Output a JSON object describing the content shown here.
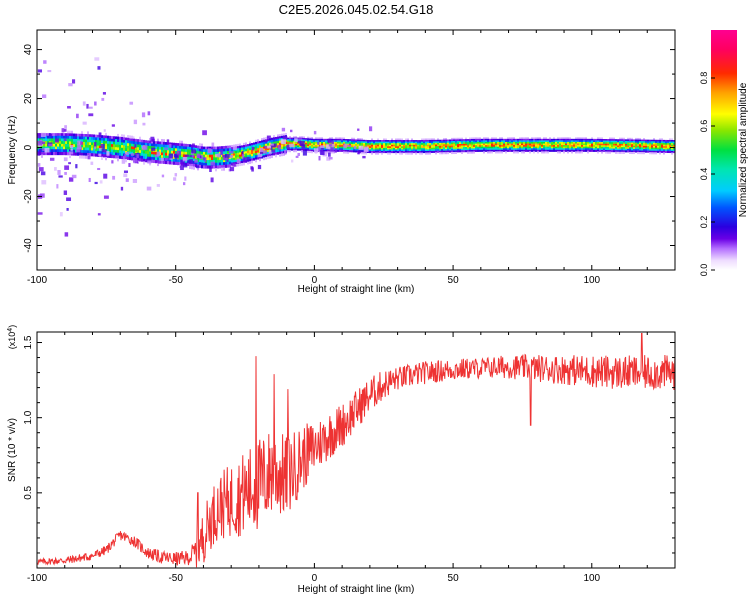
{
  "title": "C2E5.2026.045.02.54.G18",
  "chart_data": [
    {
      "type": "heatmap",
      "xlabel": "Height of straight line (km)",
      "ylabel": "Frequency (Hz)",
      "xlim": [
        -100,
        130
      ],
      "ylim": [
        -50,
        48
      ],
      "xticks": [
        -100,
        -50,
        0,
        50,
        100
      ],
      "yticks": [
        -40,
        -20,
        0,
        20,
        40
      ],
      "colorbar": {
        "label": "Normalized spectral amplitude",
        "range": [
          0,
          1
        ],
        "ticks": [
          "0.0",
          "0.2",
          "0.4",
          "0.6",
          "0.8"
        ],
        "tick_values": [
          0,
          0.2,
          0.4,
          0.6,
          0.8
        ]
      },
      "ridge": {
        "x": [
          -100,
          -90,
          -80,
          -70,
          -60,
          -50,
          -45,
          -40,
          -35,
          -30,
          -25,
          -20,
          -15,
          -10,
          -5,
          0,
          10,
          20,
          40,
          60,
          80,
          100,
          130
        ],
        "frequency": [
          1.5,
          1.5,
          1.0,
          0.0,
          -1.5,
          -2.5,
          -3.0,
          -4.0,
          -4.0,
          -3.5,
          -2.5,
          -1.0,
          0.5,
          1.5,
          1.5,
          1.0,
          1.0,
          0.5,
          0.5,
          1.0,
          1.0,
          1.0,
          0.5
        ]
      }
    },
    {
      "type": "line",
      "xlabel": "Height of straight line (km)",
      "ylabel": "SNR (10 * v/v)",
      "y_scale_label": "(x10",
      "y_scale_exponent": "4",
      "y_scale_suffix": ")",
      "xlim": [
        -100,
        130
      ],
      "ylim": [
        0.0,
        1.57
      ],
      "xticks": [
        -100,
        -50,
        0,
        50,
        100
      ],
      "yticks": [
        0.5,
        1.0,
        1.5
      ],
      "ytick_labels": [
        "0.5",
        "1.0",
        "1.5"
      ],
      "color": "#ee3333",
      "trend": {
        "x": [
          -100,
          -90,
          -80,
          -75,
          -70,
          -65,
          -60,
          -55,
          -50,
          -45,
          -42,
          -38,
          -35,
          -30,
          -25,
          -20,
          -15,
          -10,
          -5,
          0,
          5,
          10,
          15,
          20,
          25,
          30,
          40,
          50,
          60,
          70,
          80,
          90,
          100,
          110,
          120,
          130
        ],
        "y": [
          0.04,
          0.05,
          0.08,
          0.12,
          0.22,
          0.18,
          0.1,
          0.07,
          0.06,
          0.07,
          0.12,
          0.3,
          0.4,
          0.45,
          0.5,
          0.55,
          0.65,
          0.6,
          0.72,
          0.8,
          0.88,
          0.95,
          1.05,
          1.15,
          1.22,
          1.26,
          1.3,
          1.32,
          1.33,
          1.34,
          1.33,
          1.32,
          1.31,
          1.3,
          1.3,
          1.3
        ]
      },
      "noise": {
        "x": [
          -100,
          -60,
          -45,
          -40,
          -30,
          -20,
          -10,
          0,
          20,
          30,
          60,
          80,
          100,
          130
        ],
        "amplitude": [
          0.02,
          0.04,
          0.05,
          0.18,
          0.25,
          0.32,
          0.28,
          0.18,
          0.12,
          0.08,
          0.07,
          0.09,
          0.11,
          0.12
        ]
      },
      "spikes": [
        {
          "x": -21,
          "y": 1.41
        },
        {
          "x": -14.5,
          "y": 1.29
        },
        {
          "x": -9.5,
          "y": 1.19
        },
        {
          "x": -42,
          "y": 0.5
        },
        {
          "x": 78,
          "y": 0.95
        },
        {
          "x": 118,
          "y": 1.56
        }
      ]
    }
  ]
}
